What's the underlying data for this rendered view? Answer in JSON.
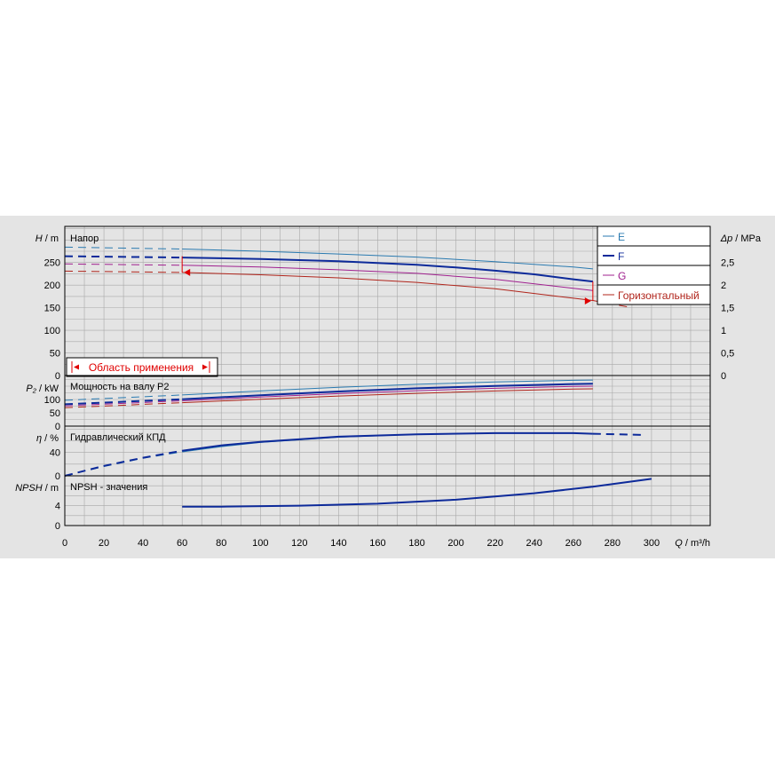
{
  "colors": {
    "E": "#2a7ab0",
    "F": "#0d2a9a",
    "G": "#a0208f",
    "horizontal": "#b0241b",
    "range": "#e00000",
    "grid": "#a8a8a8",
    "background": "#e4e4e4"
  },
  "panels": {
    "head": {
      "title": "Напор",
      "ylabel_sym": "H",
      "ylabel_unit": " / m",
      "right_sym": "Δp",
      "right_unit": " / MPa"
    },
    "power": {
      "title": "Мощность на валу P2",
      "ylabel_sym": "P₂",
      "ylabel_unit": " / kW"
    },
    "eff": {
      "title": "Гидравлический КПД",
      "ylabel_sym": "η",
      "ylabel_unit": " / %"
    },
    "npsh": {
      "title": "NPSH - значения",
      "ylabel_sym": "NPSH",
      "ylabel_unit": " / m"
    }
  },
  "xaxis": {
    "sym": "Q",
    "unit": " / m³/h"
  },
  "range_label": "Область применения",
  "legend": [
    {
      "key": "E",
      "label": "E"
    },
    {
      "key": "F",
      "label": "F"
    },
    {
      "key": "G",
      "label": "G"
    },
    {
      "key": "horizontal",
      "label": "Горизонтальный"
    }
  ],
  "chart_data": [
    {
      "type": "line",
      "panel": "head",
      "title": "Напор",
      "xlabel": "Q / m³/h",
      "ylabel": "H / m",
      "y2label": "Δp / MPa",
      "xlim": [
        0,
        330
      ],
      "ylim": [
        0,
        330
      ],
      "xticks": [
        0,
        20,
        40,
        60,
        80,
        100,
        120,
        140,
        160,
        180,
        200,
        220,
        240,
        260,
        280,
        300
      ],
      "yticks": [
        0,
        50,
        100,
        150,
        200,
        250
      ],
      "y2ticks": [
        "0",
        "0,5",
        "1",
        "1,5",
        "2",
        "2,5"
      ],
      "series": [
        {
          "name": "E",
          "x": [
            0,
            60,
            100,
            140,
            180,
            220,
            260,
            270
          ],
          "y": [
            284,
            280,
            275,
            269,
            262,
            252,
            240,
            236
          ]
        },
        {
          "name": "F",
          "x": [
            0,
            60,
            100,
            140,
            180,
            200,
            220,
            240,
            260,
            270
          ],
          "y": [
            264,
            261,
            258,
            253,
            245,
            239,
            232,
            224,
            213,
            208
          ]
        },
        {
          "name": "G",
          "x": [
            0,
            60,
            100,
            140,
            180,
            220,
            260,
            270
          ],
          "y": [
            247,
            244,
            240,
            234,
            226,
            213,
            193,
            188
          ]
        },
        {
          "name": "Горизонтальный",
          "x": [
            0,
            60,
            100,
            140,
            180,
            220,
            260,
            270,
            290
          ],
          "y": [
            231,
            228,
            223,
            216,
            206,
            192,
            171,
            166,
            150
          ]
        }
      ],
      "operating_range": [
        60,
        270
      ]
    },
    {
      "type": "line",
      "panel": "power",
      "title": "Мощность на валу P2",
      "ylabel": "P₂ / kW",
      "ylim": [
        0,
        190
      ],
      "yticks": [
        0,
        50,
        100
      ],
      "series": [
        {
          "name": "E",
          "x": [
            0,
            60,
            100,
            140,
            180,
            220,
            260,
            270
          ],
          "y": [
            97,
            117,
            132,
            146,
            157,
            166,
            172,
            173
          ]
        },
        {
          "name": "F",
          "x": [
            0,
            60,
            100,
            140,
            180,
            220,
            260,
            270
          ],
          "y": [
            82,
            101,
            116,
            130,
            142,
            151,
            158,
            159
          ]
        },
        {
          "name": "G",
          "x": [
            0,
            60,
            100,
            140,
            180,
            220,
            260,
            270
          ],
          "y": [
            76,
            95,
            109,
            122,
            133,
            142,
            149,
            150
          ]
        },
        {
          "name": "Горизонтальный",
          "x": [
            0,
            60,
            100,
            140,
            180,
            220,
            260,
            270
          ],
          "y": [
            69,
            88,
            101,
            113,
            123,
            132,
            139,
            140
          ]
        }
      ]
    },
    {
      "type": "line",
      "panel": "eff",
      "title": "Гидравлический КПД",
      "ylabel": "η / %",
      "ylim": [
        0,
        85
      ],
      "yticks": [
        0,
        40
      ],
      "series": [
        {
          "name": "E",
          "x": [
            0,
            20,
            40,
            60,
            80,
            100,
            140,
            180,
            220,
            260,
            270,
            295
          ],
          "y": [
            0,
            16,
            30,
            41,
            50,
            57,
            66,
            71,
            73,
            73,
            72,
            70
          ]
        },
        {
          "name": "F",
          "x": [
            0,
            20,
            40,
            60,
            80,
            100,
            140,
            180,
            220,
            260,
            270,
            295
          ],
          "y": [
            0,
            17,
            31,
            43,
            52,
            58,
            67,
            71,
            73,
            73,
            72,
            70
          ]
        }
      ]
    },
    {
      "type": "line",
      "panel": "npsh",
      "title": "NPSH - значения",
      "ylabel": "NPSH / m",
      "ylim": [
        0,
        10
      ],
      "yticks": [
        0,
        4
      ],
      "series": [
        {
          "name": "F",
          "x": [
            60,
            80,
            120,
            160,
            200,
            240,
            270,
            300
          ],
          "y": [
            3.8,
            3.8,
            4.0,
            4.4,
            5.2,
            6.5,
            7.8,
            9.4
          ]
        }
      ]
    }
  ]
}
